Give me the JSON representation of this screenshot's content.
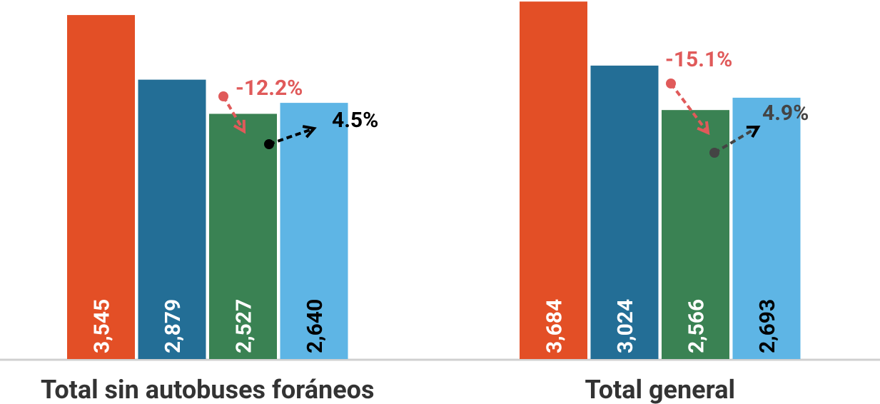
{
  "chart_data": {
    "type": "bar",
    "categories": [
      "Total sin autobuses foráneos",
      "Total general"
    ],
    "series": [
      {
        "color": "#e34f26",
        "values": [
          3545,
          3684
        ],
        "value_labels": [
          "3,545",
          "3,684"
        ]
      },
      {
        "color": "#236e96",
        "values": [
          2879,
          3024
        ],
        "value_labels": [
          "2,879",
          "3,024"
        ]
      },
      {
        "color": "#3a8253",
        "values": [
          2527,
          2566
        ],
        "value_labels": [
          "2,527",
          "2,566"
        ]
      },
      {
        "color": "#5eb5e5",
        "values": [
          2640,
          2693
        ],
        "value_labels": [
          "2,640",
          "2,693"
        ]
      }
    ],
    "ylim": [
      0,
      3700
    ],
    "annotations": [
      {
        "text": "-12.2%",
        "color": "#e05a5a"
      },
      {
        "text": "4.5%",
        "color": "#000000"
      },
      {
        "text": "-15.1%",
        "color": "#e05a5a"
      },
      {
        "text": "4.9%",
        "color": "#444444"
      }
    ]
  }
}
